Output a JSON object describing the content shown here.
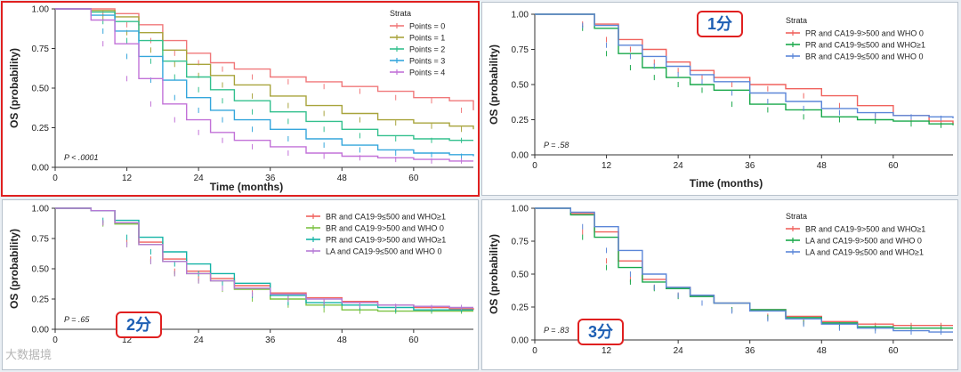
{
  "chart_data": [
    {
      "type": "line",
      "title": "",
      "xlabel": "Time (months)",
      "ylabel": "OS (probability)",
      "xlim": [
        0,
        70
      ],
      "ylim": [
        0,
        1
      ],
      "xticks": [
        "0",
        "12",
        "24",
        "36",
        "48",
        "60"
      ],
      "yticks": [
        "0.00",
        "0.25",
        "0.50",
        "0.75",
        "1.00"
      ],
      "p_value": "P < .0001",
      "legend_title": "Strata",
      "legend_position": "top-right",
      "series": [
        {
          "name": "Points = 0",
          "color": "#f0787a",
          "x": [
            0,
            6,
            10,
            14,
            18,
            22,
            26,
            30,
            36,
            42,
            48,
            54,
            60,
            66,
            70
          ],
          "y": [
            1,
            1,
            0.97,
            0.9,
            0.8,
            0.72,
            0.66,
            0.62,
            0.57,
            0.54,
            0.51,
            0.48,
            0.44,
            0.42,
            0.36
          ]
        },
        {
          "name": "Points = 1",
          "color": "#a8a43c",
          "x": [
            0,
            6,
            10,
            14,
            18,
            22,
            26,
            30,
            36,
            42,
            48,
            54,
            60,
            66,
            70
          ],
          "y": [
            1,
            0.99,
            0.95,
            0.85,
            0.74,
            0.65,
            0.58,
            0.52,
            0.45,
            0.39,
            0.34,
            0.3,
            0.28,
            0.26,
            0.24
          ]
        },
        {
          "name": "Points = 2",
          "color": "#33c08e",
          "x": [
            0,
            6,
            10,
            14,
            18,
            22,
            26,
            30,
            36,
            42,
            48,
            54,
            60,
            66,
            70
          ],
          "y": [
            1,
            0.98,
            0.92,
            0.8,
            0.67,
            0.57,
            0.49,
            0.42,
            0.35,
            0.29,
            0.24,
            0.2,
            0.18,
            0.17,
            0.17
          ]
        },
        {
          "name": "Points = 3",
          "color": "#35a6dc",
          "x": [
            0,
            6,
            10,
            14,
            18,
            22,
            26,
            30,
            36,
            42,
            48,
            54,
            60,
            66,
            70
          ],
          "y": [
            1,
            0.96,
            0.86,
            0.7,
            0.55,
            0.44,
            0.36,
            0.3,
            0.24,
            0.18,
            0.14,
            0.11,
            0.09,
            0.08,
            0.07
          ]
        },
        {
          "name": "Points = 4",
          "color": "#c272d8",
          "x": [
            0,
            6,
            10,
            14,
            18,
            22,
            26,
            30,
            36,
            42,
            48,
            54,
            60,
            66,
            70
          ],
          "y": [
            1,
            0.93,
            0.78,
            0.56,
            0.4,
            0.3,
            0.22,
            0.17,
            0.13,
            0.09,
            0.07,
            0.06,
            0.05,
            0.04,
            0.04
          ]
        }
      ]
    },
    {
      "type": "line",
      "title": "",
      "xlabel": "Time (months)",
      "ylabel": "OS (probability)",
      "xlim": [
        0,
        70
      ],
      "ylim": [
        0,
        1
      ],
      "xticks": [
        "0",
        "12",
        "24",
        "36",
        "48",
        "60"
      ],
      "yticks": [
        "0.00",
        "0.25",
        "0.50",
        "0.75",
        "1.00"
      ],
      "p_value": "P = .58",
      "legend_title": "Strata",
      "legend_position": "top-right",
      "badge": "1分",
      "series": [
        {
          "name": "PR and CA19-9>500 and WHO 0",
          "color": "#f0625d",
          "x": [
            0,
            6,
            10,
            14,
            18,
            22,
            26,
            30,
            36,
            42,
            48,
            54,
            60,
            66,
            70
          ],
          "y": [
            1,
            1,
            0.93,
            0.82,
            0.75,
            0.66,
            0.6,
            0.55,
            0.5,
            0.47,
            0.42,
            0.35,
            0.28,
            0.24,
            0.22
          ]
        },
        {
          "name": "PR and CA19-9≤500 and WHO≥1",
          "color": "#19a84a",
          "x": [
            0,
            6,
            10,
            14,
            18,
            22,
            26,
            30,
            36,
            42,
            48,
            54,
            60,
            66,
            70
          ],
          "y": [
            1,
            1,
            0.9,
            0.72,
            0.62,
            0.55,
            0.5,
            0.46,
            0.36,
            0.32,
            0.27,
            0.25,
            0.24,
            0.22,
            0.21
          ]
        },
        {
          "name": "BR and CA19-9≤500 and WHO 0",
          "color": "#5b86d8",
          "x": [
            0,
            6,
            10,
            14,
            18,
            22,
            26,
            30,
            36,
            42,
            48,
            54,
            60,
            66,
            70
          ],
          "y": [
            1,
            1,
            0.92,
            0.78,
            0.7,
            0.63,
            0.57,
            0.52,
            0.44,
            0.38,
            0.33,
            0.3,
            0.28,
            0.27,
            0.26
          ]
        }
      ]
    },
    {
      "type": "line",
      "title": "",
      "xlabel": "",
      "ylabel": "OS (probability)",
      "xlim": [
        0,
        70
      ],
      "ylim": [
        0,
        1
      ],
      "xticks": [
        "0",
        "12",
        "24",
        "36",
        "48",
        "60"
      ],
      "yticks": [
        "0.00",
        "0.25",
        "0.50",
        "0.75",
        "1.00"
      ],
      "p_value": "P = .65",
      "legend_title": "",
      "legend_position": "top-right",
      "badge": "2分",
      "watermark": "大数据境",
      "series": [
        {
          "name": "BR and CA19-9≤500 and WHO≥1",
          "color": "#f0625d",
          "x": [
            0,
            6,
            10,
            14,
            18,
            22,
            26,
            30,
            36,
            42,
            48,
            54,
            60,
            66,
            70
          ],
          "y": [
            1,
            0.98,
            0.88,
            0.72,
            0.58,
            0.48,
            0.42,
            0.36,
            0.3,
            0.26,
            0.23,
            0.2,
            0.18,
            0.17,
            0.16
          ]
        },
        {
          "name": "BR and CA19-9>500 and WHO 0",
          "color": "#7cc242",
          "x": [
            0,
            6,
            10,
            14,
            18,
            22,
            26,
            30,
            36,
            42,
            48,
            54,
            60,
            66,
            70
          ],
          "y": [
            1,
            0.98,
            0.87,
            0.7,
            0.56,
            0.46,
            0.4,
            0.33,
            0.25,
            0.2,
            0.16,
            0.15,
            0.15,
            0.15,
            0.15
          ]
        },
        {
          "name": "PR and CA19-9>500 and WHO≥1",
          "color": "#14b3a6",
          "x": [
            0,
            6,
            10,
            14,
            18,
            22,
            26,
            30,
            36,
            42,
            48,
            54,
            60,
            66,
            70
          ],
          "y": [
            1,
            0.98,
            0.9,
            0.76,
            0.64,
            0.54,
            0.46,
            0.38,
            0.28,
            0.22,
            0.2,
            0.18,
            0.16,
            0.16,
            0.16
          ]
        },
        {
          "name": "LA and CA19-9≤500 and WHO 0",
          "color": "#b57ad6",
          "x": [
            0,
            6,
            10,
            14,
            18,
            22,
            26,
            30,
            36,
            42,
            48,
            54,
            60,
            66,
            70
          ],
          "y": [
            1,
            0.98,
            0.88,
            0.7,
            0.56,
            0.46,
            0.4,
            0.34,
            0.29,
            0.25,
            0.22,
            0.2,
            0.19,
            0.18,
            0.18
          ]
        }
      ]
    },
    {
      "type": "line",
      "title": "",
      "xlabel": "",
      "ylabel": "OS (probability)",
      "xlim": [
        0,
        70
      ],
      "ylim": [
        0,
        1
      ],
      "xticks": [
        "0",
        "12",
        "24",
        "36",
        "48",
        "60"
      ],
      "yticks": [
        "0.00",
        "0.25",
        "0.50",
        "0.75",
        "1.00"
      ],
      "p_value": "P = .83",
      "legend_title": "Strata",
      "legend_position": "top-right",
      "badge": "3分",
      "series": [
        {
          "name": "BR and CA19-9>500 and WHO≥1",
          "color": "#f0625d",
          "x": [
            0,
            6,
            10,
            14,
            18,
            22,
            26,
            30,
            36,
            42,
            48,
            54,
            60,
            66,
            70
          ],
          "y": [
            1,
            0.96,
            0.82,
            0.6,
            0.46,
            0.4,
            0.34,
            0.28,
            0.23,
            0.18,
            0.14,
            0.12,
            0.11,
            0.11,
            0.11
          ]
        },
        {
          "name": "LA and CA19-9>500 and WHO 0",
          "color": "#19a84a",
          "x": [
            0,
            6,
            10,
            14,
            18,
            22,
            26,
            30,
            36,
            42,
            48,
            54,
            60,
            66,
            70
          ],
          "y": [
            1,
            0.95,
            0.78,
            0.55,
            0.44,
            0.39,
            0.33,
            0.28,
            0.23,
            0.17,
            0.13,
            0.1,
            0.09,
            0.09,
            0.09
          ]
        },
        {
          "name": "LA and CA19-9≤500 and WHO≥1",
          "color": "#5b86d8",
          "x": [
            0,
            6,
            10,
            14,
            18,
            22,
            26,
            30,
            36,
            42,
            48,
            54,
            60,
            66,
            70
          ],
          "y": [
            1,
            0.97,
            0.86,
            0.68,
            0.5,
            0.4,
            0.34,
            0.28,
            0.22,
            0.16,
            0.12,
            0.09,
            0.07,
            0.06,
            0.06
          ]
        }
      ]
    }
  ]
}
